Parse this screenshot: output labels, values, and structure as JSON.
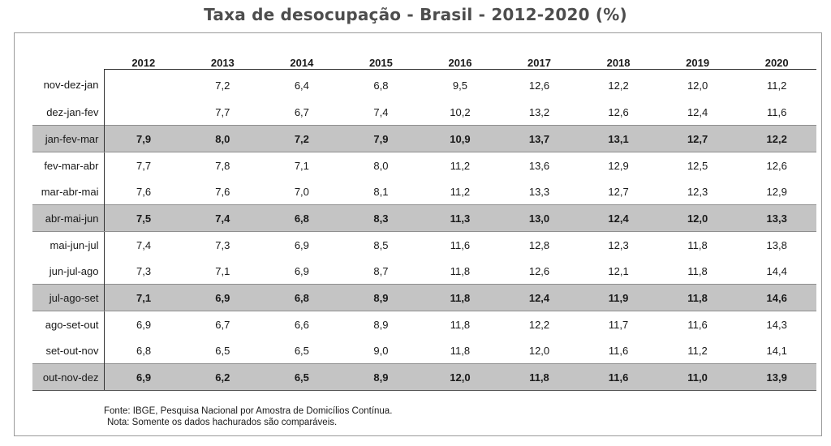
{
  "chart_data": {
    "type": "table",
    "title": "Taxa de desocupação - Brasil - 2012-2020 (%)",
    "columns": [
      "2012",
      "2013",
      "2014",
      "2015",
      "2016",
      "2017",
      "2018",
      "2019",
      "2020"
    ],
    "rows": [
      {
        "label": "nov-dez-jan",
        "shaded": false,
        "values": [
          "",
          "7,2",
          "6,4",
          "6,8",
          "9,5",
          "12,6",
          "12,2",
          "12,0",
          "11,2"
        ]
      },
      {
        "label": "dez-jan-fev",
        "shaded": false,
        "values": [
          "",
          "7,7",
          "6,7",
          "7,4",
          "10,2",
          "13,2",
          "12,6",
          "12,4",
          "11,6"
        ]
      },
      {
        "label": "jan-fev-mar",
        "shaded": true,
        "values": [
          "7,9",
          "8,0",
          "7,2",
          "7,9",
          "10,9",
          "13,7",
          "13,1",
          "12,7",
          "12,2"
        ]
      },
      {
        "label": "fev-mar-abr",
        "shaded": false,
        "values": [
          "7,7",
          "7,8",
          "7,1",
          "8,0",
          "11,2",
          "13,6",
          "12,9",
          "12,5",
          "12,6"
        ]
      },
      {
        "label": "mar-abr-mai",
        "shaded": false,
        "values": [
          "7,6",
          "7,6",
          "7,0",
          "8,1",
          "11,2",
          "13,3",
          "12,7",
          "12,3",
          "12,9"
        ]
      },
      {
        "label": "abr-mai-jun",
        "shaded": true,
        "values": [
          "7,5",
          "7,4",
          "6,8",
          "8,3",
          "11,3",
          "13,0",
          "12,4",
          "12,0",
          "13,3"
        ]
      },
      {
        "label": "mai-jun-jul",
        "shaded": false,
        "values": [
          "7,4",
          "7,3",
          "6,9",
          "8,5",
          "11,6",
          "12,8",
          "12,3",
          "11,8",
          "13,8"
        ]
      },
      {
        "label": "jun-jul-ago",
        "shaded": false,
        "values": [
          "7,3",
          "7,1",
          "6,9",
          "8,7",
          "11,8",
          "12,6",
          "12,1",
          "11,8",
          "14,4"
        ]
      },
      {
        "label": "jul-ago-set",
        "shaded": true,
        "values": [
          "7,1",
          "6,9",
          "6,8",
          "8,9",
          "11,8",
          "12,4",
          "11,9",
          "11,8",
          "14,6"
        ]
      },
      {
        "label": "ago-set-out",
        "shaded": false,
        "values": [
          "6,9",
          "6,7",
          "6,6",
          "8,9",
          "11,8",
          "12,2",
          "11,7",
          "11,6",
          "14,3"
        ]
      },
      {
        "label": "set-out-nov",
        "shaded": false,
        "values": [
          "6,8",
          "6,5",
          "6,5",
          "9,0",
          "11,8",
          "12,0",
          "11,6",
          "11,2",
          "14,1"
        ]
      },
      {
        "label": "out-nov-dez",
        "shaded": true,
        "values": [
          "6,9",
          "6,2",
          "6,5",
          "8,9",
          "12,0",
          "11,8",
          "11,6",
          "11,0",
          "13,9"
        ]
      }
    ],
    "source_note": "Fonte: IBGE, Pesquisa Nacional por Amostra de Domicílios Contínua.",
    "note": "Nota: Somente os dados hachurados são comparáveis.",
    "shade_color": "#c4c4c4"
  }
}
